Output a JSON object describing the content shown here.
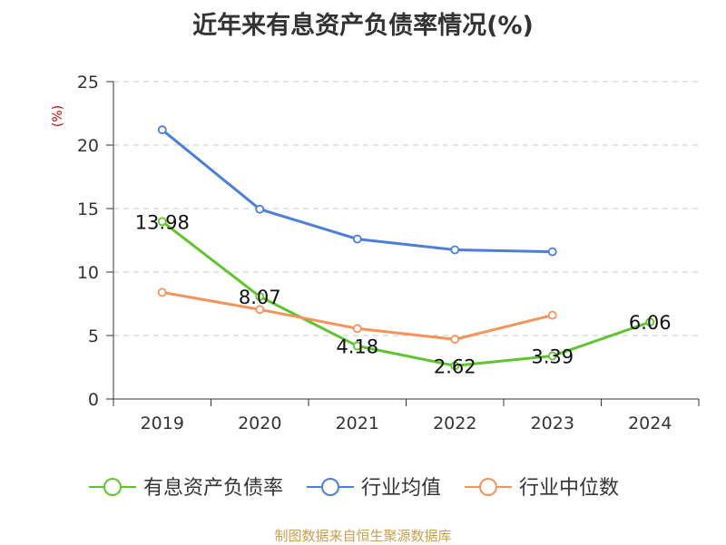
{
  "title": "近年来有息资产负债率情况(%)",
  "source_text": "制图数据来自恒生聚源数据库",
  "chart_data": {
    "type": "line",
    "title": "近年来有息资产负债率情况(%)",
    "ylabel": "(%)",
    "xlabel": "",
    "ylim": [
      0,
      25
    ],
    "yticks": [
      0,
      5,
      10,
      15,
      20,
      25
    ],
    "categories": [
      "2019",
      "2020",
      "2021",
      "2022",
      "2023",
      "2024"
    ],
    "grid": true,
    "legend_position": "bottom",
    "series": [
      {
        "name": "有息资产负债率",
        "color": "#5fc52e",
        "values": [
          13.98,
          8.07,
          4.18,
          2.62,
          3.39,
          6.06
        ],
        "labels": true
      },
      {
        "name": "行业均值",
        "color": "#4d7fd8",
        "values": [
          21.2,
          14.95,
          12.6,
          11.75,
          11.6,
          null
        ],
        "labels": false
      },
      {
        "name": "行业中位数",
        "color": "#f5935a",
        "values": [
          8.4,
          7.05,
          5.55,
          4.7,
          6.6,
          null
        ],
        "labels": false
      }
    ]
  }
}
